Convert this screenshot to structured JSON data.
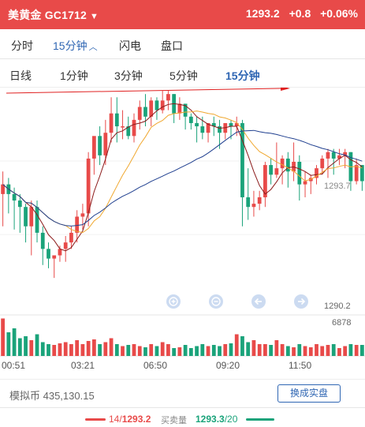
{
  "header": {
    "symbol": "美黄金 GC1712",
    "price": "1293.2",
    "change": "+0.8",
    "change_pct": "+0.06%",
    "bg_color": "#e84a49"
  },
  "view_tabs": [
    {
      "label": "分时",
      "active": false
    },
    {
      "label": "15分钟",
      "active": true,
      "icon": "chevron-up-icon"
    },
    {
      "label": "闪电",
      "active": false
    },
    {
      "label": "盘口",
      "active": false
    }
  ],
  "period_tabs": [
    {
      "label": "日线",
      "active": false
    },
    {
      "label": "1分钟",
      "active": false
    },
    {
      "label": "3分钟",
      "active": false
    },
    {
      "label": "5分钟",
      "active": false
    },
    {
      "label": "15分钟",
      "active": true
    }
  ],
  "chart_data": {
    "type": "candlestick",
    "price_labels": {
      "current": "1293.7",
      "low": "1290.2"
    },
    "volume_label": "6878",
    "x_ticks": [
      "00:51",
      "03:21",
      "06:50",
      "09:20",
      "11:50"
    ],
    "up_color": "#e84a49",
    "down_color": "#1aa37a",
    "ma_colors": [
      "#8b1a1a",
      "#f0a830",
      "#1f3f8f"
    ],
    "arrow_color": "#e02020",
    "candles": [
      [
        1293.4,
        1294.1,
        1293.7,
        1292.4
      ],
      [
        1293.7,
        1293.9,
        1293.4,
        1292.8
      ],
      [
        1293.4,
        1293.6,
        1293.2,
        1292.3
      ],
      [
        1293.2,
        1293.4,
        1293.0,
        1292.2
      ],
      [
        1293.0,
        1293.1,
        1292.4,
        1291.9
      ],
      [
        1292.4,
        1293.2,
        1293.0,
        1291.5
      ],
      [
        1293.0,
        1293.2,
        1292.2,
        1291.9
      ],
      [
        1292.2,
        1292.4,
        1291.7,
        1291.2
      ],
      [
        1291.7,
        1291.9,
        1291.4,
        1291.1
      ],
      [
        1291.4,
        1291.5,
        1291.5,
        1290.8
      ],
      [
        1291.5,
        1291.8,
        1291.7,
        1291.3
      ],
      [
        1291.7,
        1292.1,
        1291.9,
        1291.3
      ],
      [
        1291.9,
        1292.4,
        1292.2,
        1291.7
      ],
      [
        1292.2,
        1292.9,
        1292.7,
        1291.9
      ],
      [
        1292.7,
        1293.1,
        1292.8,
        1292.3
      ],
      [
        1292.8,
        1294.7,
        1294.5,
        1292.4
      ],
      [
        1294.5,
        1295.0,
        1295.2,
        1294.0
      ],
      [
        1295.2,
        1295.5,
        1294.6,
        1294.3
      ],
      [
        1294.6,
        1295.7,
        1295.3,
        1294.3
      ],
      [
        1295.3,
        1296.4,
        1295.9,
        1295.0
      ],
      [
        1295.9,
        1296.4,
        1295.5,
        1295.0
      ],
      [
        1295.5,
        1296.0,
        1295.5,
        1295.1
      ],
      [
        1295.5,
        1295.8,
        1295.2,
        1295.1
      ],
      [
        1295.2,
        1295.9,
        1295.7,
        1295.0
      ],
      [
        1295.7,
        1296.3,
        1296.1,
        1295.4
      ],
      [
        1296.1,
        1296.5,
        1295.8,
        1295.5
      ],
      [
        1295.8,
        1296.4,
        1296.3,
        1295.5
      ],
      [
        1296.3,
        1296.4,
        1296.0,
        1295.7
      ],
      [
        1296.0,
        1296.6,
        1296.3,
        1295.9
      ],
      [
        1296.3,
        1296.6,
        1296.5,
        1296.0
      ],
      [
        1296.5,
        1296.5,
        1295.9,
        1295.6
      ],
      [
        1295.9,
        1296.4,
        1296.2,
        1295.7
      ],
      [
        1296.2,
        1296.2,
        1295.8,
        1295.4
      ],
      [
        1295.8,
        1295.9,
        1295.6,
        1295.4
      ],
      [
        1295.6,
        1295.8,
        1295.5,
        1295.0
      ],
      [
        1295.5,
        1295.8,
        1295.3,
        1295.1
      ],
      [
        1295.3,
        1295.6,
        1295.6,
        1295.0
      ],
      [
        1295.6,
        1295.8,
        1295.5,
        1295.2
      ],
      [
        1295.5,
        1295.7,
        1295.3,
        1294.8
      ],
      [
        1295.3,
        1295.6,
        1295.6,
        1295.1
      ],
      [
        1295.6,
        1295.7,
        1295.5,
        1295.1
      ],
      [
        1295.5,
        1295.8,
        1295.6,
        1295.2
      ],
      [
        1295.6,
        1295.7,
        1293.3,
        1292.4
      ],
      [
        1293.3,
        1294.2,
        1293.0,
        1292.6
      ],
      [
        1293.0,
        1293.5,
        1293.1,
        1292.7
      ],
      [
        1293.1,
        1293.5,
        1293.3,
        1292.9
      ],
      [
        1293.3,
        1294.4,
        1294.3,
        1293.0
      ],
      [
        1294.3,
        1294.5,
        1294.0,
        1293.7
      ],
      [
        1294.0,
        1295.0,
        1294.2,
        1293.9
      ],
      [
        1294.2,
        1294.6,
        1294.5,
        1293.7
      ],
      [
        1294.5,
        1294.7,
        1294.1,
        1293.6
      ],
      [
        1294.1,
        1295.0,
        1294.4,
        1293.8
      ],
      [
        1294.4,
        1294.6,
        1293.7,
        1293.2
      ],
      [
        1293.7,
        1294.1,
        1293.8,
        1293.3
      ],
      [
        1293.8,
        1294.0,
        1293.9,
        1293.4
      ],
      [
        1293.9,
        1294.3,
        1294.2,
        1293.7
      ],
      [
        1294.2,
        1294.6,
        1294.5,
        1294.0
      ],
      [
        1294.5,
        1294.8,
        1294.7,
        1293.9
      ],
      [
        1294.7,
        1294.8,
        1294.5,
        1294.0
      ],
      [
        1294.5,
        1294.8,
        1294.6,
        1294.3
      ],
      [
        1294.6,
        1294.8,
        1294.7,
        1294.2
      ],
      [
        1294.7,
        1294.7,
        1293.8,
        1293.5
      ],
      [
        1293.8,
        1294.5,
        1294.3,
        1293.7
      ],
      [
        1294.3,
        1294.3,
        1293.8,
        1293.5
      ]
    ],
    "volumes": [
      0.95,
      0.6,
      0.7,
      0.45,
      0.5,
      0.4,
      0.55,
      0.35,
      0.3,
      0.28,
      0.32,
      0.35,
      0.3,
      0.4,
      0.3,
      0.38,
      0.42,
      0.3,
      0.35,
      0.45,
      0.3,
      0.25,
      0.28,
      0.3,
      0.25,
      0.22,
      0.3,
      0.25,
      0.35,
      0.3,
      0.2,
      0.22,
      0.28,
      0.2,
      0.25,
      0.3,
      0.25,
      0.28,
      0.25,
      0.3,
      0.32,
      0.55,
      0.5,
      0.35,
      0.4,
      0.3,
      0.3,
      0.28,
      0.4,
      0.3,
      0.25,
      0.22,
      0.3,
      0.25,
      0.22,
      0.3,
      0.25,
      0.28,
      0.3,
      0.2,
      0.25,
      0.3,
      0.28,
      0.28
    ]
  },
  "chart_tools": [
    {
      "icon": "zoom-in-icon"
    },
    {
      "icon": "zoom-out-icon"
    },
    {
      "icon": "arrow-left-icon"
    },
    {
      "icon": "arrow-right-icon"
    }
  ],
  "footer": {
    "balance_label": "模拟币 435,130.15",
    "switch_button": "换成实盘"
  },
  "orderbook": {
    "bid_count": "14/",
    "bid_price": "1293.2",
    "mid_label": "买卖量",
    "ask_price": "1293.3",
    "ask_count": "/20"
  }
}
